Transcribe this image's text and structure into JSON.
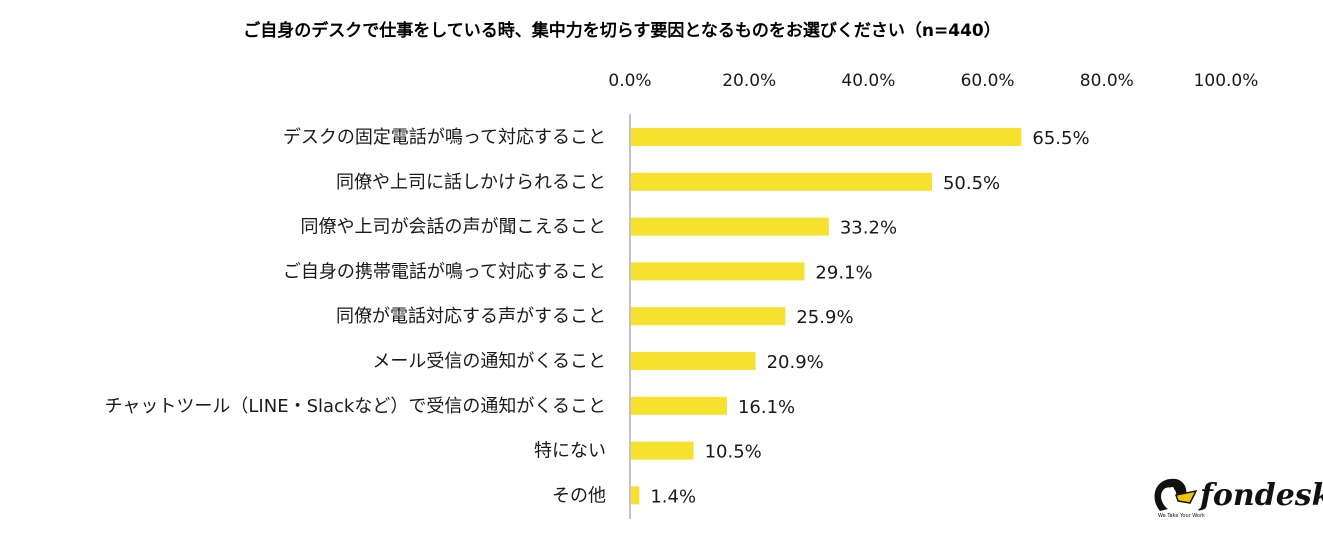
{
  "chart_data": {
    "type": "bar",
    "orientation": "horizontal",
    "title": "ご自身のデスクで仕事をしている時、集中力を切らす要因となるものをお選びください（n=440）",
    "categories": [
      "デスクの固定電話が鳴って対応すること",
      "同僚や上司に話しかけられること",
      "同僚や上司が会話の声が聞こえること",
      "ご自身の携帯電話が鳴って対応すること",
      "同僚が電話対応する声がすること",
      "メール受信の通知がくること",
      "チャットツール（LINE・Slackなど）で受信の通知がくること",
      "特にない",
      "その他"
    ],
    "values": [
      65.5,
      50.5,
      33.2,
      29.1,
      25.9,
      20.9,
      16.1,
      10.5,
      1.4
    ],
    "value_labels": [
      "65.5%",
      "50.5%",
      "33.2%",
      "29.1%",
      "25.9%",
      "20.9%",
      "16.1%",
      "10.5%",
      "1.4%"
    ],
    "xlim": [
      0,
      100
    ],
    "x_ticks": [
      "0.0%",
      "20.0%",
      "40.0%",
      "60.0%",
      "80.0%",
      "100.0%"
    ],
    "axis_position": "top",
    "grid": false,
    "bar_color": "#F5E12E"
  },
  "logo": {
    "name": "fondesk",
    "tagline": "We Take Your Work"
  }
}
